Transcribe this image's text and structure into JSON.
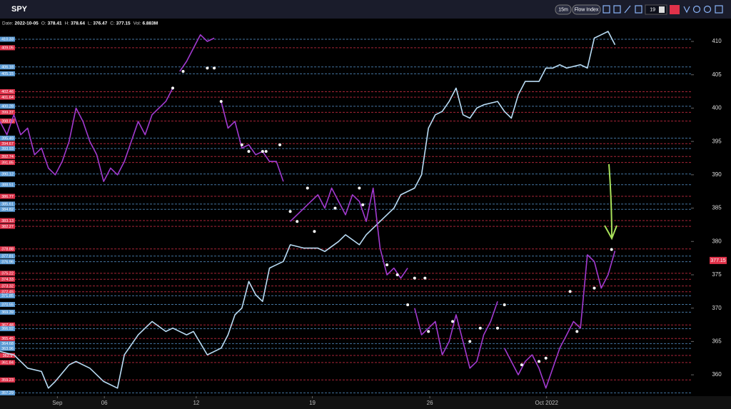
{
  "toolbar": {
    "symbol": "SPY",
    "interval": "15m",
    "indicator": "Flow Index",
    "input": "19"
  },
  "info": [
    {
      "label": "Date:",
      "value": "2022-10-05"
    },
    {
      "label": "O:",
      "value": "378.41"
    },
    {
      "label": "H:",
      "value": "378.64"
    },
    {
      "label": "L:",
      "value": "376.47"
    },
    {
      "label": "C:",
      "value": "377.15"
    },
    {
      "label": "Vol:",
      "value": "6.883M"
    }
  ],
  "chart_data": {
    "type": "line",
    "xlim": [
      0,
      100
    ],
    "xticks": [
      {
        "value": 8.3,
        "label": "Sep"
      },
      {
        "value": 15.1,
        "label": "06"
      },
      {
        "value": 28.4,
        "label": "12"
      },
      {
        "value": 45.2,
        "label": "19"
      },
      {
        "value": 62.2,
        "label": "26"
      },
      {
        "value": 79.1,
        "label": "Oct 2022"
      }
    ],
    "ylim": [
      356.8,
      413
    ],
    "yticks": [
      360,
      365,
      370,
      375,
      380,
      385,
      390,
      395,
      400,
      405,
      410
    ],
    "last_price": 377.15,
    "levels": [
      {
        "value": 410.33,
        "color": "#5b9bd5"
      },
      {
        "value": 409.05,
        "color": "#e0324a"
      },
      {
        "value": 406.18,
        "color": "#5b9bd5"
      },
      {
        "value": 405.15,
        "color": "#5b9bd5"
      },
      {
        "value": 402.46,
        "color": "#e0324a"
      },
      {
        "value": 401.64,
        "color": "#e0324a"
      },
      {
        "value": 400.28,
        "color": "#5b9bd5"
      },
      {
        "value": 399.37,
        "color": "#e0324a"
      },
      {
        "value": 398.06,
        "color": "#e0324a"
      },
      {
        "value": 395.49,
        "color": "#5b9bd5"
      },
      {
        "value": 394.67,
        "color": "#e0324a"
      },
      {
        "value": 393.93,
        "color": "#5b9bd5"
      },
      {
        "value": 392.74,
        "color": "#e0324a"
      },
      {
        "value": 391.85,
        "color": "#e0324a"
      },
      {
        "value": 390.12,
        "color": "#5b9bd5"
      },
      {
        "value": 388.51,
        "color": "#5b9bd5"
      },
      {
        "value": 386.77,
        "color": "#e0324a"
      },
      {
        "value": 385.61,
        "color": "#5b9bd5"
      },
      {
        "value": 384.82,
        "color": "#5b9bd5"
      },
      {
        "value": 383.13,
        "color": "#e0324a"
      },
      {
        "value": 382.27,
        "color": "#e0324a"
      },
      {
        "value": 378.88,
        "color": "#e0324a"
      },
      {
        "value": 377.81,
        "color": "#5b9bd5"
      },
      {
        "value": 376.96,
        "color": "#5b9bd5"
      },
      {
        "value": 375.22,
        "color": "#e0324a"
      },
      {
        "value": 374.33,
        "color": "#e0324a"
      },
      {
        "value": 373.32,
        "color": "#e0324a"
      },
      {
        "value": 372.45,
        "color": "#e0324a"
      },
      {
        "value": 371.85,
        "color": "#5b9bd5"
      },
      {
        "value": 370.55,
        "color": "#5b9bd5"
      },
      {
        "value": 369.39,
        "color": "#5b9bd5"
      },
      {
        "value": 367.48,
        "color": "#e0324a"
      },
      {
        "value": 366.92,
        "color": "#5b9bd5"
      },
      {
        "value": 365.45,
        "color": "#e0324a"
      },
      {
        "value": 364.68,
        "color": "#5b9bd5"
      },
      {
        "value": 363.96,
        "color": "#5b9bd5"
      },
      {
        "value": 362.9,
        "color": "#e0324a"
      },
      {
        "value": 361.84,
        "color": "#e0324a"
      },
      {
        "value": 359.23,
        "color": "#e0324a"
      },
      {
        "value": 357.29,
        "color": "#5b9bd5"
      }
    ],
    "series": [
      {
        "color": "#b9dcf5",
        "x": [
          0,
          2,
          4,
          6,
          7,
          8,
          10,
          11,
          13,
          15,
          17,
          18,
          20,
          22,
          24,
          25,
          27,
          28,
          30,
          32,
          33,
          34,
          35,
          36,
          37,
          38,
          39,
          41,
          42,
          44,
          46,
          47,
          49,
          50,
          52,
          53,
          55,
          57,
          58,
          60,
          61,
          62,
          63,
          64,
          65,
          66,
          67,
          68,
          69,
          70,
          72,
          73,
          74,
          75,
          76,
          78,
          79,
          80,
          81,
          82,
          84,
          85,
          86,
          87,
          88,
          89
        ],
        "values": [
          363.5,
          363,
          361,
          360.5,
          358,
          359,
          361.5,
          362,
          361,
          359,
          358,
          363,
          366,
          368,
          366.5,
          367,
          366,
          366.5,
          363,
          364,
          366,
          369,
          370,
          374,
          372,
          371,
          376,
          377,
          379.5,
          379,
          379,
          378.5,
          380,
          381,
          379.5,
          381,
          383,
          385,
          387,
          388,
          390,
          397,
          399,
          399.5,
          401,
          403,
          399,
          398.5,
          400,
          400.5,
          401,
          399.5,
          398.5,
          402,
          404,
          404,
          406,
          406,
          406.5,
          406,
          406.5,
          406,
          410.5,
          411,
          411.5,
          409.5
        ]
      },
      {
        "color": "#a23ad0",
        "x": [
          0,
          1,
          2,
          3,
          4,
          5,
          6,
          7,
          8,
          9,
          10,
          11,
          12,
          13,
          14,
          15,
          16,
          17,
          18,
          19,
          20,
          21,
          22,
          23,
          24,
          25,
          25.5,
          26,
          27,
          28,
          29,
          30,
          31,
          31.5,
          32,
          33,
          34,
          35,
          36,
          37,
          38,
          39,
          40,
          41,
          41.5,
          42,
          43,
          44,
          45,
          46,
          47,
          48,
          49,
          50,
          51,
          52,
          53,
          54,
          55,
          56,
          57,
          58,
          59,
          59.5,
          60,
          61,
          62,
          63,
          64,
          65,
          66,
          67,
          68,
          69,
          70,
          71,
          72,
          72.5,
          73,
          74,
          75,
          76,
          77,
          78,
          79,
          80,
          81,
          82,
          83,
          84,
          85,
          86,
          87,
          88,
          89
        ],
        "values": [
          398,
          396,
          399,
          396,
          397,
          393,
          394,
          391,
          390,
          392,
          395,
          400,
          398,
          395,
          393,
          389,
          391,
          390,
          392,
          395,
          398,
          396,
          399,
          400,
          401,
          403,
          null,
          405.5,
          407,
          409,
          411,
          410,
          410.5,
          null,
          401,
          397,
          398,
          394,
          394.5,
          393,
          393.5,
          392,
          392,
          389,
          null,
          383,
          384,
          385,
          386,
          387,
          385,
          388,
          386,
          384,
          387,
          386,
          383,
          388,
          379,
          375,
          376,
          374.5,
          376,
          null,
          370,
          366,
          367,
          368,
          363,
          365,
          369,
          365,
          361,
          362,
          366,
          368,
          371,
          null,
          364,
          362,
          360,
          362,
          363,
          361,
          358,
          361,
          364,
          366,
          368,
          367,
          378,
          377,
          373,
          375,
          378.6
        ]
      }
    ],
    "markers": {
      "color": "#ffffff",
      "x": [
        25,
        26.5,
        30,
        31,
        32,
        35,
        36,
        38,
        38.5,
        40.5,
        42,
        43,
        44.5,
        45.5,
        48.5,
        52,
        52.5,
        56,
        57.5,
        60,
        61.5,
        59,
        62,
        65.5,
        68,
        69.5,
        72,
        73,
        75.5,
        78,
        79,
        82.5,
        83.5,
        86,
        88.5
      ],
      "values": [
        403,
        405.5,
        406,
        406,
        401,
        394.5,
        393.5,
        393.5,
        393.5,
        394.5,
        384.5,
        383,
        388,
        381.5,
        385,
        388,
        385.5,
        376.5,
        375,
        374.5,
        374.5,
        370.5,
        366.5,
        368,
        365,
        367,
        367,
        370.5,
        361.5,
        362,
        362.5,
        372.5,
        366.5,
        373,
        378.8
      ]
    }
  }
}
